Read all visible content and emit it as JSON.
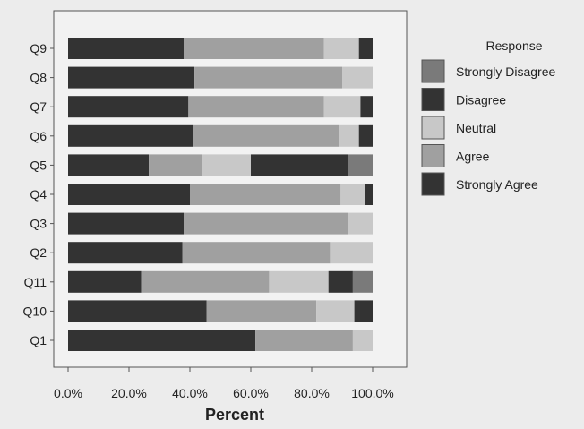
{
  "chart_data": {
    "type": "bar",
    "orientation": "horizontal",
    "stacked": true,
    "title": "",
    "xlabel": "Percent",
    "ylabel": "",
    "xlim": [
      0,
      100
    ],
    "x_ticks": [
      "0.0%",
      "20.0%",
      "40.0%",
      "60.0%",
      "80.0%",
      "100.0%"
    ],
    "grid": false,
    "legend_placement": "right",
    "legend_title": "Response",
    "categories": [
      "Q9",
      "Q8",
      "Q7",
      "Q6",
      "Q5",
      "Q4",
      "Q3",
      "Q2",
      "Q11",
      "Q10",
      "Q1"
    ],
    "series": [
      {
        "name": "Strongly Agree",
        "color": "#333333",
        "values": [
          38,
          41.5,
          39.5,
          41,
          26.5,
          40,
          38,
          37.5,
          24,
          45.5,
          61.5
        ]
      },
      {
        "name": "Agree",
        "color": "#a0a0a0",
        "values": [
          46,
          48.5,
          44.5,
          48,
          17.5,
          49.5,
          54,
          48.5,
          42,
          36,
          32
        ]
      },
      {
        "name": "Neutral",
        "color": "#c8c8c8",
        "values": [
          11.5,
          10,
          12,
          6.5,
          16,
          8,
          8,
          14,
          19.5,
          12.5,
          6.5
        ]
      },
      {
        "name": "Disagree",
        "color": "#333333",
        "values": [
          4.5,
          0,
          4,
          4.5,
          32,
          2.5,
          0,
          0,
          8,
          6,
          0
        ]
      },
      {
        "name": "Strongly Disagree",
        "color": "#7a7a7a",
        "values": [
          0,
          0,
          0,
          0,
          8,
          0,
          0,
          0,
          6.5,
          0,
          0
        ]
      }
    ],
    "legend_order": [
      "Strongly Disagree",
      "Disagree",
      "Neutral",
      "Agree",
      "Strongly Agree"
    ]
  },
  "colors": {
    "page_background": "#ececec",
    "plot_background": "#f2f2f2",
    "frame": "#555555"
  }
}
